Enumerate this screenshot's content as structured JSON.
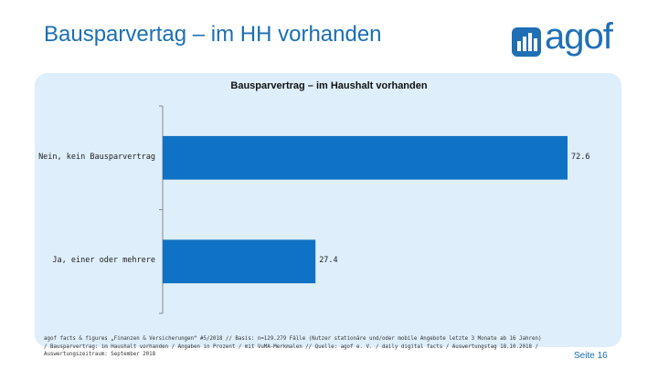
{
  "header": {
    "title": "Bausparvertag – im HH vorhanden",
    "logo_text": "agof"
  },
  "chart_data": {
    "type": "bar",
    "orientation": "horizontal",
    "title": "Bausparvertrag – im Haushalt vorhanden",
    "categories": [
      "Nein, kein Bausparvertrag",
      "Ja, einer oder mehrere"
    ],
    "values": [
      72.6,
      27.4
    ],
    "value_labels": [
      "72.6",
      "27.4"
    ],
    "xlim": [
      0,
      72.6
    ],
    "xlabel": "",
    "ylabel": "",
    "bar_color": "#1072c4",
    "grid": false
  },
  "footer": {
    "footnote_lines": [
      "agof facts & figures „Finanzen & Versicherungen“ #5/2018 // Basis: n=129.279 Fälle (Nutzer stationäre und/oder mobile Angebote letzte 3 Monate ab 16 Jahren)",
      "/ Bausparvertrag: im Haushalt vorhanden / Angaben in Prozent / mit VuMA-Merkmalen // Quelle: agof e. V. / daily digital facts / Auswertungstag 18.10.2018 /",
      "Auswertungszeitraum: September 2018"
    ],
    "page_label": "Seite 16"
  },
  "colors": {
    "title": "#1a6fb5",
    "panel": "#deeefb",
    "bar": "#1072c4"
  }
}
